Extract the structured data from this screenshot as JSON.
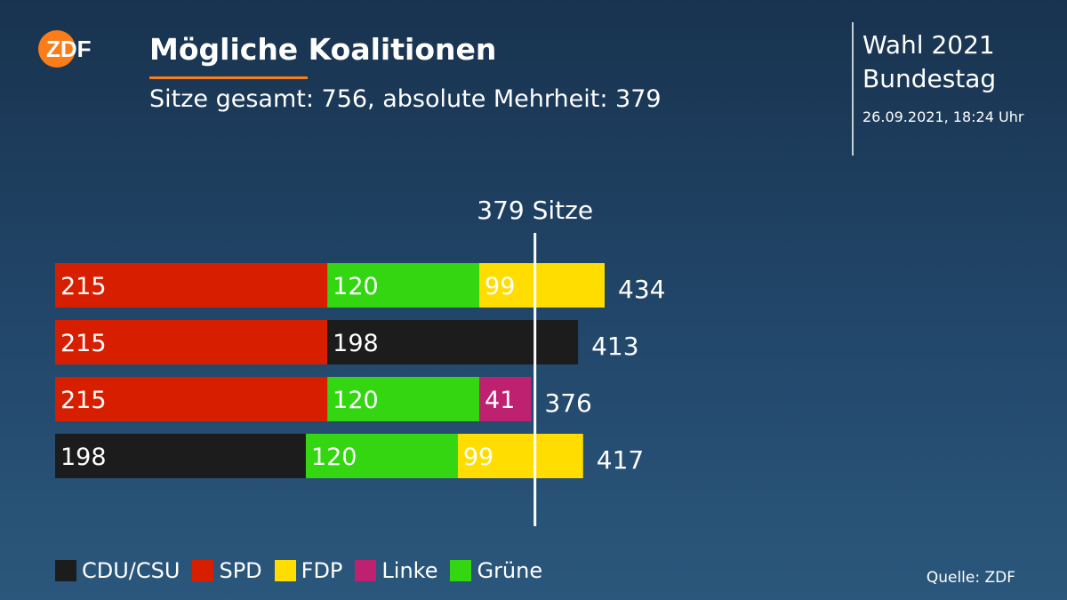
{
  "brand": {
    "logo_text": "ZDF",
    "logo_color": "#fa7d19"
  },
  "header": {
    "title": "Mögliche Koalitionen",
    "subtitle": "Sitze gesamt: 756, absolute Mehrheit: 379"
  },
  "meta": {
    "line1": "Wahl 2021",
    "line2": "Bundestag",
    "datetime": "26.09.2021, 18:24 Uhr"
  },
  "source": "Quelle: ZDF",
  "chart_data": {
    "type": "bar",
    "orientation": "horizontal",
    "stacked": true,
    "majority_label": "379 Sitze",
    "majority_value": 379,
    "xlim": [
      0,
      434
    ],
    "parties": [
      {
        "name": "CDU/CSU",
        "color": "#1c1c1c"
      },
      {
        "name": "SPD",
        "color": "#d71f00"
      },
      {
        "name": "FDP",
        "color": "#ffdd00"
      },
      {
        "name": "Linke",
        "color": "#be2170"
      },
      {
        "name": "Grüne",
        "color": "#33d611"
      }
    ],
    "rows": [
      {
        "segments": [
          {
            "party": "SPD",
            "value": 215
          },
          {
            "party": "Grüne",
            "value": 120
          },
          {
            "party": "FDP",
            "value": 99
          }
        ],
        "total": 434
      },
      {
        "segments": [
          {
            "party": "SPD",
            "value": 215
          },
          {
            "party": "CDU/CSU",
            "value": 198
          }
        ],
        "total": 413
      },
      {
        "segments": [
          {
            "party": "SPD",
            "value": 215
          },
          {
            "party": "Grüne",
            "value": 120
          },
          {
            "party": "Linke",
            "value": 41
          }
        ],
        "total": 376
      },
      {
        "segments": [
          {
            "party": "CDU/CSU",
            "value": 198
          },
          {
            "party": "Grüne",
            "value": 120
          },
          {
            "party": "FDP",
            "value": 99
          }
        ],
        "total": 417
      }
    ],
    "legend_position": "bottom-left",
    "grid": false
  }
}
